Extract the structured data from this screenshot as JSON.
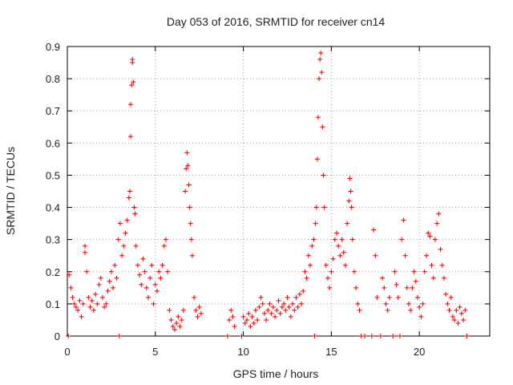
{
  "chart_data": {
    "type": "scatter",
    "title": "Day 053 of 2016, SRMTID for receiver cn14",
    "xlabel": "GPS time / hours",
    "ylabel": "SRMTID / TECUs",
    "xlim": [
      0,
      24
    ],
    "ylim": [
      0,
      0.9
    ],
    "xticks": [
      0,
      5,
      10,
      15,
      20
    ],
    "xtick_labels": [
      "0",
      "5",
      "10",
      "15",
      "20"
    ],
    "yticks": [
      0,
      0.1,
      0.2,
      0.3,
      0.4,
      0.5,
      0.6,
      0.7,
      0.8,
      0.9
    ],
    "ytick_labels": [
      "0",
      "0.1",
      "0.2",
      "0.3",
      "0.4",
      "0.5",
      "0.6",
      "0.7",
      "0.8",
      "0.9"
    ],
    "grid": true,
    "marker": "+",
    "series": [
      {
        "name": "SRMTID",
        "color": "#e00000",
        "points": [
          [
            0.05,
            0.0
          ],
          [
            0.1,
            0.19
          ],
          [
            0.2,
            0.15
          ],
          [
            0.3,
            0.12
          ],
          [
            0.4,
            0.1
          ],
          [
            0.5,
            0.09
          ],
          [
            0.6,
            0.08
          ],
          [
            0.7,
            0.11
          ],
          [
            0.8,
            0.06
          ],
          [
            0.9,
            0.1
          ],
          [
            1.0,
            0.28
          ],
          [
            1.0,
            0.26
          ],
          [
            1.1,
            0.2
          ],
          [
            1.2,
            0.12
          ],
          [
            1.3,
            0.09
          ],
          [
            1.4,
            0.11
          ],
          [
            1.5,
            0.08
          ],
          [
            1.6,
            0.13
          ],
          [
            1.7,
            0.1
          ],
          [
            1.8,
            0.16
          ],
          [
            1.9,
            0.18
          ],
          [
            2.0,
            0.12
          ],
          [
            2.1,
            0.09
          ],
          [
            2.2,
            0.1
          ],
          [
            2.3,
            0.14
          ],
          [
            2.4,
            0.17
          ],
          [
            2.5,
            0.2
          ],
          [
            2.6,
            0.15
          ],
          [
            2.7,
            0.22
          ],
          [
            2.8,
            0.18
          ],
          [
            2.9,
            0.3
          ],
          [
            2.95,
            0.0
          ],
          [
            3.0,
            0.35
          ],
          [
            3.1,
            0.25
          ],
          [
            3.2,
            0.28
          ],
          [
            3.3,
            0.32
          ],
          [
            3.4,
            0.36
          ],
          [
            3.5,
            0.43
          ],
          [
            3.55,
            0.45
          ],
          [
            3.6,
            0.62
          ],
          [
            3.6,
            0.72
          ],
          [
            3.65,
            0.78
          ],
          [
            3.7,
            0.86
          ],
          [
            3.7,
            0.85
          ],
          [
            3.75,
            0.79
          ],
          [
            3.8,
            0.4
          ],
          [
            3.85,
            0.38
          ],
          [
            3.9,
            0.28
          ],
          [
            4.0,
            0.22
          ],
          [
            4.1,
            0.19
          ],
          [
            4.2,
            0.16
          ],
          [
            4.3,
            0.24
          ],
          [
            4.4,
            0.2
          ],
          [
            4.5,
            0.15
          ],
          [
            4.6,
            0.12
          ],
          [
            4.7,
            0.18
          ],
          [
            4.8,
            0.22
          ],
          [
            4.9,
            0.1
          ],
          [
            5.0,
            0.16
          ],
          [
            5.1,
            0.14
          ],
          [
            5.2,
            0.2
          ],
          [
            5.3,
            0.18
          ],
          [
            5.4,
            0.22
          ],
          [
            5.5,
            0.28
          ],
          [
            5.6,
            0.3
          ],
          [
            5.7,
            0.2
          ],
          [
            5.8,
            0.08
          ],
          [
            5.9,
            0.05
          ],
          [
            6.0,
            0.03
          ],
          [
            6.1,
            0.02
          ],
          [
            6.2,
            0.04
          ],
          [
            6.3,
            0.06
          ],
          [
            6.4,
            0.03
          ],
          [
            6.5,
            0.05
          ],
          [
            6.6,
            0.08
          ],
          [
            6.7,
            0.45
          ],
          [
            6.75,
            0.52
          ],
          [
            6.8,
            0.57
          ],
          [
            6.85,
            0.53
          ],
          [
            6.9,
            0.47
          ],
          [
            6.95,
            0.4
          ],
          [
            7.0,
            0.35
          ],
          [
            7.05,
            0.3
          ],
          [
            7.1,
            0.25
          ],
          [
            7.2,
            0.12
          ],
          [
            7.3,
            0.08
          ],
          [
            7.4,
            0.06
          ],
          [
            7.5,
            0.09
          ],
          [
            7.6,
            0.07
          ],
          [
            9.1,
            0.0
          ],
          [
            9.2,
            0.05
          ],
          [
            9.3,
            0.08
          ],
          [
            9.4,
            0.06
          ],
          [
            9.5,
            0.03
          ],
          [
            9.9,
            0.0
          ],
          [
            10.0,
            0.06
          ],
          [
            10.1,
            0.04
          ],
          [
            10.2,
            0.05
          ],
          [
            10.3,
            0.07
          ],
          [
            10.4,
            0.03
          ],
          [
            10.5,
            0.06
          ],
          [
            10.6,
            0.04
          ],
          [
            10.7,
            0.08
          ],
          [
            10.8,
            0.05
          ],
          [
            10.9,
            0.09
          ],
          [
            11.0,
            0.12
          ],
          [
            11.1,
            0.1
          ],
          [
            11.2,
            0.07
          ],
          [
            11.3,
            0.05
          ],
          [
            11.4,
            0.08
          ],
          [
            11.5,
            0.1
          ],
          [
            11.6,
            0.07
          ],
          [
            11.7,
            0.09
          ],
          [
            11.8,
            0.06
          ],
          [
            11.9,
            0.08
          ],
          [
            12.0,
            0.11
          ],
          [
            12.1,
            0.07
          ],
          [
            12.2,
            0.09
          ],
          [
            12.3,
            0.1
          ],
          [
            12.4,
            0.08
          ],
          [
            12.5,
            0.12
          ],
          [
            12.6,
            0.09
          ],
          [
            12.7,
            0.06
          ],
          [
            12.8,
            0.1
          ],
          [
            12.9,
            0.08
          ],
          [
            13.0,
            0.12
          ],
          [
            13.1,
            0.09
          ],
          [
            13.2,
            0.13
          ],
          [
            13.3,
            0.1
          ],
          [
            13.4,
            0.14
          ],
          [
            13.5,
            0.2
          ],
          [
            13.6,
            0.18
          ],
          [
            13.7,
            0.25
          ],
          [
            13.8,
            0.22
          ],
          [
            13.9,
            0.28
          ],
          [
            14.0,
            0.3
          ],
          [
            14.05,
            0.0
          ],
          [
            14.1,
            0.35
          ],
          [
            14.15,
            0.4
          ],
          [
            14.2,
            0.55
          ],
          [
            14.25,
            0.68
          ],
          [
            14.3,
            0.8
          ],
          [
            14.35,
            0.86
          ],
          [
            14.4,
            0.88
          ],
          [
            14.45,
            0.82
          ],
          [
            14.5,
            0.65
          ],
          [
            14.55,
            0.5
          ],
          [
            14.6,
            0.4
          ],
          [
            14.7,
            0.22
          ],
          [
            14.8,
            0.18
          ],
          [
            14.9,
            0.15
          ],
          [
            15.0,
            0.2
          ],
          [
            15.1,
            0.24
          ],
          [
            15.2,
            0.3
          ],
          [
            15.3,
            0.32
          ],
          [
            15.4,
            0.28
          ],
          [
            15.5,
            0.25
          ],
          [
            15.6,
            0.3
          ],
          [
            15.7,
            0.26
          ],
          [
            15.8,
            0.22
          ],
          [
            15.9,
            0.35
          ],
          [
            16.0,
            0.42
          ],
          [
            16.05,
            0.49
          ],
          [
            16.1,
            0.45
          ],
          [
            16.15,
            0.4
          ],
          [
            16.2,
            0.3
          ],
          [
            16.3,
            0.2
          ],
          [
            16.4,
            0.15
          ],
          [
            16.5,
            0.1
          ],
          [
            16.6,
            0.08
          ],
          [
            16.7,
            0.0
          ],
          [
            16.9,
            0.0
          ],
          [
            17.3,
            0.0
          ],
          [
            17.4,
            0.33
          ],
          [
            17.5,
            0.25
          ],
          [
            17.6,
            0.12
          ],
          [
            17.8,
            0.0
          ],
          [
            17.9,
            0.18
          ],
          [
            18.0,
            0.15
          ],
          [
            18.1,
            0.1
          ],
          [
            18.2,
            0.08
          ],
          [
            18.3,
            0.12
          ],
          [
            18.5,
            0.0
          ],
          [
            18.6,
            0.2
          ],
          [
            18.7,
            0.16
          ],
          [
            18.8,
            0.12
          ],
          [
            18.9,
            0.0
          ],
          [
            19.0,
            0.3
          ],
          [
            19.1,
            0.36
          ],
          [
            19.2,
            0.25
          ],
          [
            19.3,
            0.15
          ],
          [
            19.4,
            0.1
          ],
          [
            19.5,
            0.08
          ],
          [
            19.6,
            0.15
          ],
          [
            19.7,
            0.2
          ],
          [
            19.8,
            0.17
          ],
          [
            19.9,
            0.12
          ],
          [
            20.0,
            0.09
          ],
          [
            20.1,
            0.06
          ],
          [
            20.2,
            0.1
          ],
          [
            20.3,
            0.2
          ],
          [
            20.4,
            0.25
          ],
          [
            20.5,
            0.32
          ],
          [
            20.6,
            0.31
          ],
          [
            20.7,
            0.22
          ],
          [
            20.8,
            0.18
          ],
          [
            20.9,
            0.3
          ],
          [
            21.0,
            0.35
          ],
          [
            21.1,
            0.38
          ],
          [
            21.2,
            0.27
          ],
          [
            21.3,
            0.22
          ],
          [
            21.4,
            0.18
          ],
          [
            21.5,
            0.13
          ],
          [
            21.6,
            0.1
          ],
          [
            21.7,
            0.08
          ],
          [
            21.8,
            0.12
          ],
          [
            21.9,
            0.06
          ],
          [
            22.0,
            0.05
          ],
          [
            22.1,
            0.08
          ],
          [
            22.2,
            0.04
          ],
          [
            22.3,
            0.09
          ],
          [
            22.4,
            0.07
          ],
          [
            22.5,
            0.05
          ],
          [
            22.6,
            0.08
          ],
          [
            22.7,
            0.0
          ]
        ]
      }
    ]
  }
}
